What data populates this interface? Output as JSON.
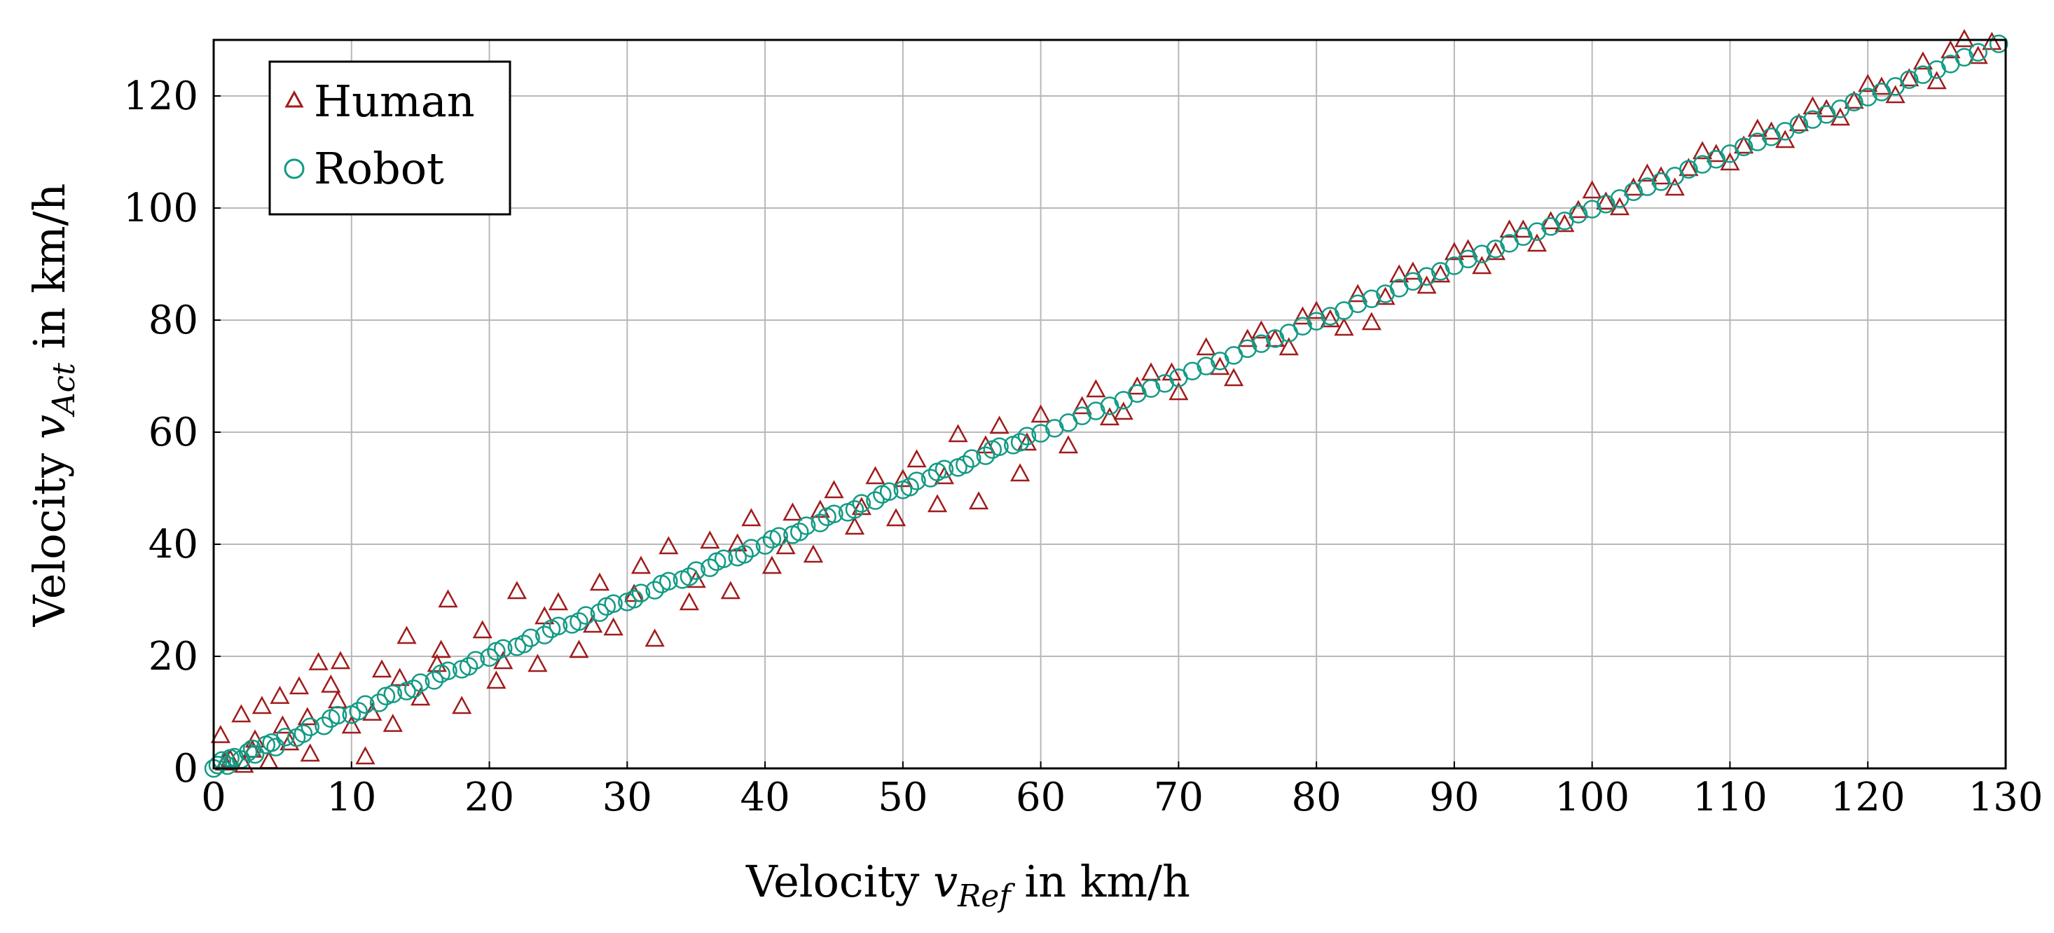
{
  "chart_data": {
    "type": "scatter",
    "title": "",
    "xlabel": {
      "prefix": "Velocity ",
      "var": "v",
      "sub": "Ref",
      "suffix": " in km/h"
    },
    "ylabel": {
      "prefix": "Velocity ",
      "var": "v",
      "sub": "Act",
      "suffix": " in km/h"
    },
    "xlim": [
      0,
      130
    ],
    "ylim": [
      0,
      130
    ],
    "xticks": [
      0,
      10,
      20,
      30,
      40,
      50,
      60,
      70,
      80,
      90,
      100,
      110,
      120,
      130
    ],
    "yticks": [
      0,
      20,
      40,
      60,
      80,
      100,
      120
    ],
    "grid": true,
    "legend_position": "top-left",
    "series": [
      {
        "name": "Human",
        "marker": "triangle",
        "color": "#a01c1c",
        "points": [
          [
            0.5,
            5.8
          ],
          [
            1.2,
            1.5
          ],
          [
            2.0,
            9.5
          ],
          [
            2.8,
            3.2
          ],
          [
            3.5,
            11.0
          ],
          [
            4.0,
            1.2
          ],
          [
            4.8,
            12.8
          ],
          [
            5.5,
            4.5
          ],
          [
            6.2,
            14.5
          ],
          [
            7.0,
            2.5
          ],
          [
            7.6,
            18.8
          ],
          [
            8.5,
            14.8
          ],
          [
            9.2,
            19.0
          ],
          [
            10.0,
            7.5
          ],
          [
            11.0,
            2.0
          ],
          [
            11.5,
            9.8
          ],
          [
            12.2,
            17.5
          ],
          [
            13.0,
            7.8
          ],
          [
            14.0,
            23.5
          ],
          [
            15.0,
            12.5
          ],
          [
            16.2,
            18.5
          ],
          [
            17.0,
            30.0
          ],
          [
            18.0,
            11.0
          ],
          [
            19.5,
            24.5
          ],
          [
            20.5,
            15.5
          ],
          [
            22.0,
            31.5
          ],
          [
            23.5,
            18.5
          ],
          [
            25.0,
            29.5
          ],
          [
            26.5,
            21.0
          ],
          [
            28.0,
            33.0
          ],
          [
            29.0,
            25.0
          ],
          [
            31.0,
            36.0
          ],
          [
            32.0,
            23.0
          ],
          [
            33.0,
            39.5
          ],
          [
            34.5,
            29.5
          ],
          [
            36.0,
            40.5
          ],
          [
            37.5,
            31.5
          ],
          [
            39.0,
            44.5
          ],
          [
            40.5,
            36.0
          ],
          [
            42.0,
            45.5
          ],
          [
            43.5,
            38.0
          ],
          [
            45.0,
            49.5
          ],
          [
            46.5,
            43.0
          ],
          [
            48.0,
            52.0
          ],
          [
            49.5,
            44.5
          ],
          [
            51.0,
            55.0
          ],
          [
            52.5,
            47.0
          ],
          [
            54.0,
            59.5
          ],
          [
            55.5,
            47.5
          ],
          [
            57.0,
            61.0
          ],
          [
            58.5,
            52.5
          ],
          [
            60.0,
            63.0
          ],
          [
            62.0,
            57.5
          ],
          [
            64.0,
            67.5
          ],
          [
            66.0,
            63.5
          ],
          [
            68.0,
            70.5
          ],
          [
            70.0,
            67.0
          ],
          [
            72.0,
            75.0
          ],
          [
            74.0,
            69.5
          ],
          [
            76.0,
            78.0
          ],
          [
            78.0,
            75.0
          ],
          [
            80.0,
            81.5
          ],
          [
            82.0,
            78.5
          ],
          [
            84.0,
            79.5
          ],
          [
            86.0,
            88.0
          ],
          [
            88.0,
            86.0
          ],
          [
            90.0,
            92.0
          ],
          [
            92.0,
            89.5
          ],
          [
            94.0,
            96.0
          ],
          [
            96.0,
            93.5
          ],
          [
            98.0,
            97.0
          ],
          [
            100.0,
            103.0
          ],
          [
            102.0,
            100.0
          ],
          [
            104.0,
            106.0
          ],
          [
            106.0,
            103.5
          ],
          [
            108.0,
            110.0
          ],
          [
            110.0,
            108.0
          ],
          [
            112.0,
            114.0
          ],
          [
            114.0,
            112.0
          ],
          [
            116.0,
            118.0
          ],
          [
            118.0,
            116.0
          ],
          [
            120.0,
            122.0
          ],
          [
            122.0,
            120.0
          ],
          [
            124.0,
            126.0
          ],
          [
            125.0,
            122.5
          ],
          [
            126.0,
            128.0
          ],
          [
            127.0,
            130.0
          ],
          [
            128.0,
            127.0
          ],
          [
            129.0,
            129.5
          ],
          [
            0.8,
            0.9
          ],
          [
            3.0,
            5.0
          ],
          [
            5.0,
            7.5
          ],
          [
            9.0,
            12.0
          ],
          [
            13.5,
            16.0
          ],
          [
            16.5,
            21.0
          ],
          [
            21.0,
            19.0
          ],
          [
            24.0,
            27.0
          ],
          [
            27.5,
            25.5
          ],
          [
            30.5,
            31.0
          ],
          [
            35.0,
            33.5
          ],
          [
            38.0,
            40.0
          ],
          [
            41.5,
            39.5
          ],
          [
            44.0,
            46.0
          ],
          [
            47.0,
            46.5
          ],
          [
            50.0,
            51.5
          ],
          [
            53.0,
            52.0
          ],
          [
            56.0,
            57.5
          ],
          [
            59.0,
            58.0
          ],
          [
            63.0,
            64.5
          ],
          [
            65.0,
            62.5
          ],
          [
            67.0,
            68.0
          ],
          [
            69.5,
            70.5
          ],
          [
            73.0,
            71.5
          ],
          [
            75.0,
            76.5
          ],
          [
            77.0,
            76.5
          ],
          [
            79.0,
            80.5
          ],
          [
            81.0,
            80.0
          ],
          [
            83.0,
            84.5
          ],
          [
            85.0,
            84.0
          ],
          [
            87.0,
            88.5
          ],
          [
            89.0,
            88.0
          ],
          [
            91.0,
            92.5
          ],
          [
            93.0,
            92.0
          ],
          [
            95.0,
            96.0
          ],
          [
            97.0,
            97.5
          ],
          [
            99.0,
            99.5
          ],
          [
            101.0,
            101.0
          ],
          [
            103.0,
            103.5
          ],
          [
            105.0,
            105.5
          ],
          [
            107.0,
            107.0
          ],
          [
            109.0,
            109.5
          ],
          [
            111.0,
            111.0
          ],
          [
            113.0,
            113.5
          ],
          [
            115.0,
            115.0
          ],
          [
            117.0,
            117.5
          ],
          [
            119.0,
            119.0
          ],
          [
            121.0,
            121.5
          ],
          [
            123.0,
            123.0
          ],
          [
            2.2,
            0.5
          ],
          [
            6.8,
            9.0
          ]
        ]
      },
      {
        "name": "Robot",
        "marker": "circle",
        "color": "#129a84",
        "points": [
          [
            0.0,
            0.0
          ],
          [
            0.3,
            0.6
          ],
          [
            0.6,
            1.4
          ],
          [
            1.0,
            0.5
          ],
          [
            1.5,
            2.0
          ],
          [
            2.0,
            1.6
          ],
          [
            2.5,
            2.9
          ],
          [
            3.0,
            2.5
          ],
          [
            3.8,
            4.2
          ],
          [
            4.5,
            3.8
          ],
          [
            5.2,
            5.6
          ],
          [
            6.0,
            5.5
          ],
          [
            7.0,
            7.4
          ],
          [
            8.0,
            7.6
          ],
          [
            9.0,
            9.5
          ],
          [
            10.0,
            9.6
          ],
          [
            11.0,
            11.4
          ],
          [
            12.0,
            11.7
          ],
          [
            13.0,
            13.3
          ],
          [
            14.0,
            13.8
          ],
          [
            15.0,
            15.3
          ],
          [
            16.0,
            15.7
          ],
          [
            17.0,
            17.4
          ],
          [
            18.0,
            17.7
          ],
          [
            19.0,
            19.3
          ],
          [
            20.0,
            19.8
          ],
          [
            21.0,
            21.4
          ],
          [
            22.0,
            21.7
          ],
          [
            23.0,
            23.3
          ],
          [
            24.0,
            23.8
          ],
          [
            25.0,
            25.4
          ],
          [
            26.0,
            25.7
          ],
          [
            27.0,
            27.3
          ],
          [
            28.0,
            27.8
          ],
          [
            29.0,
            29.4
          ],
          [
            30.0,
            29.7
          ],
          [
            31.0,
            31.3
          ],
          [
            32.0,
            31.8
          ],
          [
            33.0,
            33.4
          ],
          [
            34.0,
            33.7
          ],
          [
            35.0,
            35.3
          ],
          [
            36.0,
            35.8
          ],
          [
            37.0,
            37.4
          ],
          [
            38.0,
            37.7
          ],
          [
            39.0,
            39.3
          ],
          [
            40.0,
            39.8
          ],
          [
            41.0,
            41.4
          ],
          [
            42.0,
            41.7
          ],
          [
            43.0,
            43.3
          ],
          [
            44.0,
            43.8
          ],
          [
            45.0,
            45.4
          ],
          [
            46.0,
            45.7
          ],
          [
            47.0,
            47.3
          ],
          [
            48.0,
            47.8
          ],
          [
            49.0,
            49.4
          ],
          [
            50.0,
            49.7
          ],
          [
            51.0,
            51.3
          ],
          [
            52.0,
            51.8
          ],
          [
            53.0,
            53.4
          ],
          [
            54.0,
            53.7
          ],
          [
            55.0,
            55.3
          ],
          [
            56.0,
            55.8
          ],
          [
            57.0,
            57.4
          ],
          [
            58.0,
            57.7
          ],
          [
            59.0,
            59.3
          ],
          [
            60.0,
            59.8
          ],
          [
            62.0,
            61.7
          ],
          [
            64.0,
            63.8
          ],
          [
            66.0,
            65.7
          ],
          [
            68.0,
            67.8
          ],
          [
            70.0,
            69.7
          ],
          [
            72.0,
            71.8
          ],
          [
            74.0,
            73.7
          ],
          [
            76.0,
            75.8
          ],
          [
            78.0,
            77.7
          ],
          [
            80.0,
            79.8
          ],
          [
            82.0,
            81.7
          ],
          [
            84.0,
            83.8
          ],
          [
            86.0,
            85.7
          ],
          [
            88.0,
            87.8
          ],
          [
            90.0,
            89.7
          ],
          [
            92.0,
            91.8
          ],
          [
            94.0,
            93.7
          ],
          [
            96.0,
            95.8
          ],
          [
            98.0,
            97.7
          ],
          [
            100.0,
            99.8
          ],
          [
            102.0,
            101.7
          ],
          [
            104.0,
            103.8
          ],
          [
            106.0,
            105.7
          ],
          [
            108.0,
            107.8
          ],
          [
            110.0,
            109.7
          ],
          [
            112.0,
            111.8
          ],
          [
            114.0,
            113.7
          ],
          [
            116.0,
            115.8
          ],
          [
            118.0,
            117.7
          ],
          [
            120.0,
            119.8
          ],
          [
            122.0,
            121.7
          ],
          [
            124.0,
            123.8
          ],
          [
            126.0,
            125.7
          ],
          [
            128.0,
            127.8
          ],
          [
            129.5,
            129.3
          ],
          [
            1.2,
            1.8
          ],
          [
            2.8,
            3.5
          ],
          [
            4.2,
            4.6
          ],
          [
            6.5,
            6.2
          ],
          [
            8.5,
            8.9
          ],
          [
            10.5,
            10.2
          ],
          [
            12.5,
            12.9
          ],
          [
            14.5,
            14.2
          ],
          [
            16.5,
            16.9
          ],
          [
            18.5,
            18.2
          ],
          [
            20.5,
            20.9
          ],
          [
            22.5,
            22.2
          ],
          [
            24.5,
            24.9
          ],
          [
            26.5,
            26.2
          ],
          [
            28.5,
            28.9
          ],
          [
            30.5,
            30.2
          ],
          [
            32.5,
            32.9
          ],
          [
            34.5,
            34.2
          ],
          [
            36.5,
            36.9
          ],
          [
            38.5,
            38.2
          ],
          [
            40.5,
            40.9
          ],
          [
            42.5,
            42.2
          ],
          [
            44.5,
            44.9
          ],
          [
            46.5,
            46.2
          ],
          [
            48.5,
            48.9
          ],
          [
            50.5,
            50.2
          ],
          [
            52.5,
            52.9
          ],
          [
            54.5,
            54.2
          ],
          [
            56.5,
            56.9
          ],
          [
            58.5,
            58.2
          ],
          [
            61.0,
            60.7
          ],
          [
            63.0,
            62.9
          ],
          [
            65.0,
            64.7
          ],
          [
            67.0,
            66.9
          ],
          [
            69.0,
            68.7
          ],
          [
            71.0,
            70.9
          ],
          [
            73.0,
            72.7
          ],
          [
            75.0,
            74.9
          ],
          [
            77.0,
            76.7
          ],
          [
            79.0,
            78.9
          ],
          [
            81.0,
            80.7
          ],
          [
            83.0,
            82.9
          ],
          [
            85.0,
            84.7
          ],
          [
            87.0,
            86.9
          ],
          [
            89.0,
            88.7
          ],
          [
            91.0,
            90.9
          ],
          [
            93.0,
            92.7
          ],
          [
            95.0,
            94.9
          ],
          [
            97.0,
            96.7
          ],
          [
            99.0,
            98.9
          ],
          [
            101.0,
            100.7
          ],
          [
            103.0,
            102.9
          ],
          [
            105.0,
            104.7
          ],
          [
            107.0,
            106.9
          ],
          [
            109.0,
            108.7
          ],
          [
            111.0,
            110.9
          ],
          [
            113.0,
            112.7
          ],
          [
            115.0,
            114.9
          ],
          [
            117.0,
            116.7
          ],
          [
            119.0,
            118.9
          ],
          [
            121.0,
            120.7
          ],
          [
            123.0,
            122.9
          ],
          [
            125.0,
            124.7
          ],
          [
            127.0,
            126.9
          ]
        ]
      }
    ]
  }
}
